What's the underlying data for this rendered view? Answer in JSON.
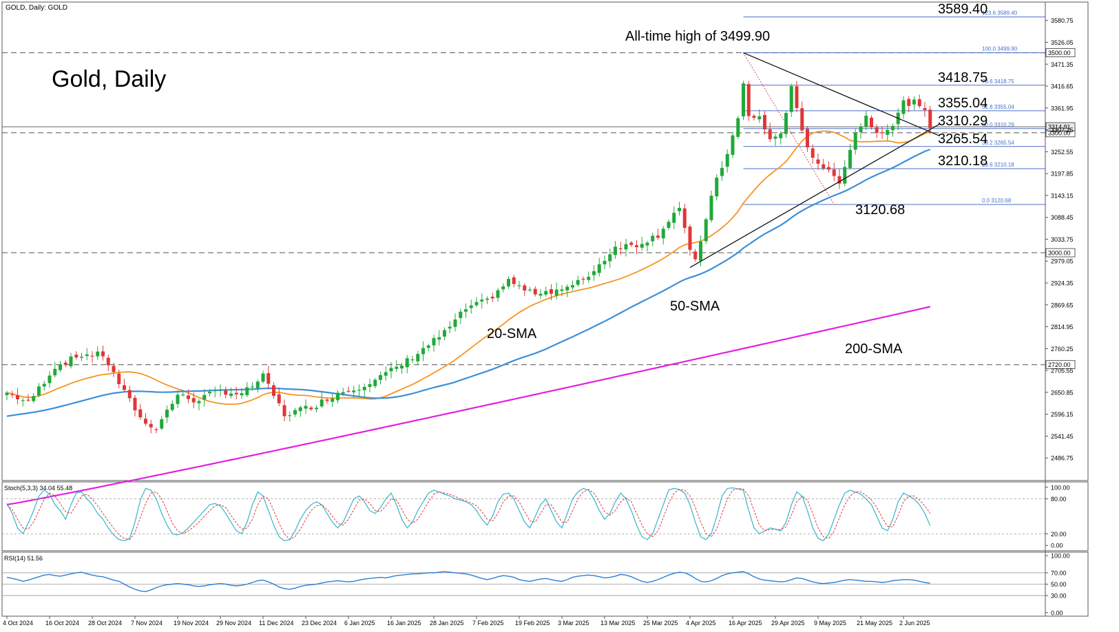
{
  "header": {
    "symbol_label": "GOLD, Daily:  GOLD",
    "chart_title": "Gold, Daily"
  },
  "colors": {
    "bull": "#22a83a",
    "bear": "#e23636",
    "sma20": "#f7941d",
    "sma50": "#3a8fd9",
    "sma200": "#e41ee0",
    "stoch_main": "#35b3c7",
    "stoch_signal": "#e23636",
    "rsi": "#2a7fd4",
    "fib": "#4a6fc7",
    "trend": "#111111"
  },
  "chart_data": [
    {
      "id": "price",
      "type": "candlestick",
      "title": "Gold, Daily",
      "ylim": [
        2432,
        3625
      ],
      "y_ticks": [
        2486.75,
        2541.45,
        2596.15,
        2650.85,
        2705.55,
        2760.25,
        2814.95,
        2869.65,
        2924.35,
        2979.05,
        3033.75,
        3088.45,
        3143.15,
        3197.85,
        3252.55,
        3307.25,
        3361.95,
        3416.65,
        3471.35,
        3526.05,
        3580.75
      ],
      "y_tick_labels": [
        "2486.75",
        "2541.45",
        "2596.15",
        "2650.85",
        "2705.55",
        "2760.25",
        "2814.95",
        "2869.65",
        "2924.35",
        "2979.05",
        "3033.75",
        "3088.45",
        "3143.15",
        "3197.85",
        "3252.55",
        "3307.25",
        "3361.95",
        "3416.65",
        "3471.35",
        "3526.05",
        "3580.75"
      ],
      "x_labels": [
        "4 Oct 2024",
        "16 Oct 2024",
        "28 Oct 2024",
        "7 Nov 2024",
        "19 Nov 2024",
        "29 Nov 2024",
        "11 Dec 2024",
        "23 Dec 2024",
        "6 Jan 2025",
        "16 Jan 2025",
        "28 Jan 2025",
        "7 Feb 2025",
        "19 Feb 2025",
        "3 Mar 2025",
        "13 Mar 2025",
        "25 Mar 2025",
        "4 Apr 2025",
        "16 Apr 2025",
        "29 Apr 2025",
        "9 May 2025",
        "21 May 2025",
        "2 Jun 2025"
      ],
      "x_label_index": [
        0,
        8,
        16,
        24,
        32,
        40,
        48,
        56,
        64,
        72,
        80,
        88,
        96,
        104,
        112,
        120,
        128,
        136,
        144,
        152,
        160,
        168
      ],
      "n_candles": 174,
      "close_anchors": [
        [
          0,
          2650
        ],
        [
          4,
          2625
        ],
        [
          9,
          2715
        ],
        [
          14,
          2745
        ],
        [
          18,
          2745
        ],
        [
          22,
          2650
        ],
        [
          26,
          2570
        ],
        [
          28,
          2565
        ],
        [
          32,
          2645
        ],
        [
          35,
          2630
        ],
        [
          40,
          2655
        ],
        [
          44,
          2645
        ],
        [
          48,
          2690
        ],
        [
          52,
          2595
        ],
        [
          58,
          2620
        ],
        [
          62,
          2650
        ],
        [
          66,
          2665
        ],
        [
          70,
          2690
        ],
        [
          74,
          2720
        ],
        [
          78,
          2760
        ],
        [
          82,
          2800
        ],
        [
          86,
          2860
        ],
        [
          90,
          2880
        ],
        [
          94,
          2930
        ],
        [
          98,
          2900
        ],
        [
          102,
          2905
        ],
        [
          106,
          2915
        ],
        [
          110,
          2955
        ],
        [
          114,
          3015
        ],
        [
          118,
          3020
        ],
        [
          122,
          3045
        ],
        [
          125,
          3100
        ],
        [
          126,
          3110
        ],
        [
          128,
          3000
        ],
        [
          129,
          2985
        ],
        [
          131,
          3080
        ],
        [
          133,
          3190
        ],
        [
          135,
          3245
        ],
        [
          137,
          3335
        ],
        [
          138,
          3420
        ],
        [
          139,
          3340
        ],
        [
          141,
          3340
        ],
        [
          143,
          3280
        ],
        [
          145,
          3300
        ],
        [
          147,
          3410
        ],
        [
          149,
          3300
        ],
        [
          151,
          3240
        ],
        [
          154,
          3200
        ],
        [
          156,
          3180
        ],
        [
          159,
          3300
        ],
        [
          161,
          3340
        ],
        [
          163,
          3300
        ],
        [
          166,
          3320
        ],
        [
          168,
          3375
        ],
        [
          170,
          3375
        ],
        [
          172,
          3350
        ],
        [
          173,
          3315
        ]
      ],
      "price_lines": [
        {
          "name": "3500",
          "value": 3500.0,
          "label": "3500.00",
          "dashed": true
        },
        {
          "name": "3300",
          "value": 3300.0,
          "label": "3300.00",
          "dashed": true
        },
        {
          "name": "3000",
          "value": 3000.0,
          "label": "3000.00",
          "dashed": true
        },
        {
          "name": "2720",
          "value": 2720.0,
          "label": "2720.00",
          "dashed": true
        },
        {
          "name": "last",
          "value": 3314.91,
          "label": "3314.91",
          "dashed": false
        }
      ],
      "fib_levels": [
        {
          "ratio": "123.6",
          "value": 3589.4,
          "big_label": "3589.40"
        },
        {
          "ratio": "100.0",
          "value": 3499.9,
          "big_label": ""
        },
        {
          "ratio": "78.6",
          "value": 3418.75,
          "big_label": "3418.75"
        },
        {
          "ratio": "61.8",
          "value": 3355.04,
          "big_label": "3355.04"
        },
        {
          "ratio": "50.0",
          "value": 3310.29,
          "big_label": "3310.29"
        },
        {
          "ratio": "38.2",
          "value": 3265.54,
          "big_label": "3265.54"
        },
        {
          "ratio": "23.6",
          "value": 3210.18,
          "big_label": "3210.18"
        },
        {
          "ratio": "0.0",
          "value": 3120.68,
          "big_label": ""
        }
      ],
      "annotations": {
        "ath": "All-time high of 3499.90",
        "low": "3120.68",
        "sma20": "20-SMA",
        "sma50": "50-SMA",
        "sma200": "200-SMA"
      },
      "sma200_range": [
        2370,
        2865
      ],
      "trendlines": [
        {
          "name": "upper",
          "from": [
            138,
            3499.9
          ],
          "to": [
            173,
            3292
          ]
        },
        {
          "name": "lower",
          "from": [
            128,
            2963
          ],
          "to": [
            173,
            3322
          ]
        }
      ],
      "grid": false,
      "legend": "none"
    },
    {
      "id": "stochastic",
      "type": "line",
      "title": "Stoch(5,3,3) 34.04 55.48",
      "ylim": [
        -8,
        108
      ],
      "y_ticks": [
        0,
        20,
        80,
        100
      ],
      "y_tick_labels": [
        "0.00",
        "20.00",
        "80.00",
        "100.00"
      ],
      "levels": [
        20,
        80
      ],
      "series": [
        {
          "name": "%K",
          "values": [
            72,
            55,
            30,
            20,
            38,
            60,
            85,
            95,
            88,
            70,
            60,
            45,
            70,
            90,
            92,
            80,
            70,
            55,
            45,
            30,
            18,
            10,
            8,
            12,
            40,
            78,
            98,
            95,
            80,
            55,
            35,
            20,
            18,
            22,
            30,
            40,
            50,
            60,
            70,
            72,
            68,
            55,
            40,
            25,
            20,
            40,
            70,
            92,
            85,
            60,
            35,
            15,
            8,
            10,
            25,
            45,
            60,
            70,
            75,
            70,
            55,
            40,
            30,
            40,
            60,
            80,
            85,
            75,
            60,
            55,
            65,
            80,
            90,
            70,
            45,
            30,
            40,
            60,
            75,
            90,
            95,
            92,
            88,
            85,
            80,
            78,
            75,
            70,
            60,
            45,
            35,
            50,
            75,
            88,
            90,
            80,
            60,
            40,
            30,
            50,
            70,
            80,
            60,
            40,
            30,
            55,
            80,
            92,
            98,
            95,
            80,
            60,
            45,
            55,
            75,
            90,
            80,
            60,
            35,
            15,
            10,
            20,
            45,
            70,
            95,
            98,
            96,
            90,
            70,
            40,
            15,
            10,
            20,
            50,
            85,
            98,
            99,
            97,
            95,
            60,
            30,
            20,
            25,
            30,
            28,
            25,
            40,
            70,
            92,
            85,
            60,
            30,
            12,
            8,
            20,
            45,
            70,
            90,
            95,
            92,
            88,
            80,
            70,
            50,
            30,
            25,
            45,
            75,
            90,
            85,
            80,
            70,
            55,
            34
          ]
        },
        {
          "name": "%D",
          "values": [
            70,
            62,
            45,
            30,
            28,
            40,
            60,
            80,
            90,
            85,
            72,
            58,
            55,
            70,
            85,
            88,
            80,
            68,
            55,
            42,
            30,
            18,
            12,
            10,
            22,
            48,
            72,
            90,
            92,
            80,
            60,
            38,
            25,
            20,
            25,
            32,
            40,
            50,
            60,
            68,
            70,
            65,
            52,
            38,
            28,
            30,
            45,
            70,
            85,
            80,
            60,
            38,
            20,
            10,
            15,
            28,
            45,
            60,
            68,
            70,
            62,
            50,
            38,
            35,
            45,
            62,
            78,
            80,
            72,
            60,
            58,
            68,
            80,
            78,
            62,
            45,
            38,
            45,
            60,
            75,
            88,
            92,
            90,
            88,
            84,
            80,
            77,
            73,
            68,
            58,
            45,
            42,
            55,
            75,
            85,
            85,
            75,
            58,
            42,
            40,
            55,
            70,
            70,
            55,
            40,
            40,
            60,
            80,
            92,
            96,
            90,
            75,
            58,
            52,
            60,
            75,
            82,
            75,
            55,
            35,
            20,
            15,
            25,
            48,
            72,
            90,
            96,
            95,
            85,
            65,
            40,
            20,
            15,
            28,
            55,
            80,
            95,
            98,
            97,
            85,
            60,
            35,
            25,
            27,
            28,
            27,
            32,
            52,
            75,
            85,
            78,
            55,
            30,
            15,
            12,
            25,
            48,
            70,
            85,
            92,
            92,
            86,
            78,
            65,
            48,
            33,
            32,
            52,
            75,
            85,
            85,
            78,
            68,
            55
          ]
        }
      ],
      "grid": false,
      "legend": "none"
    },
    {
      "id": "rsi",
      "type": "line",
      "title": "RSI(14) 51.56",
      "ylim": [
        -5,
        105
      ],
      "y_ticks": [
        0,
        30,
        50,
        70,
        100
      ],
      "y_tick_labels": [
        "0.00",
        "30.00",
        "50.00",
        "70.00",
        "100.00"
      ],
      "levels": [
        30,
        50,
        70
      ],
      "series": [
        {
          "name": "RSI",
          "values": [
            62,
            60,
            58,
            55,
            57,
            60,
            63,
            66,
            67,
            65,
            64,
            66,
            68,
            70,
            71,
            68,
            66,
            64,
            63,
            60,
            57,
            55,
            50,
            45,
            41,
            38,
            37,
            40,
            44,
            47,
            49,
            50,
            51,
            50,
            49,
            47,
            46,
            47,
            49,
            50,
            51,
            50,
            48,
            47,
            48,
            50,
            53,
            56,
            57,
            54,
            50,
            45,
            42,
            41,
            43,
            46,
            48,
            49,
            50,
            52,
            54,
            55,
            56,
            55,
            54,
            55,
            57,
            59,
            60,
            61,
            62,
            61,
            63,
            65,
            66,
            67,
            68,
            68,
            69,
            70,
            70,
            71,
            72,
            71,
            70,
            69,
            68,
            66,
            63,
            60,
            58,
            60,
            63,
            65,
            64,
            62,
            58,
            56,
            55,
            57,
            59,
            60,
            58,
            56,
            55,
            58,
            62,
            64,
            65,
            66,
            65,
            63,
            61,
            62,
            64,
            67,
            66,
            63,
            59,
            55,
            53,
            55,
            58,
            62,
            66,
            69,
            71,
            70,
            66,
            60,
            55,
            54,
            56,
            60,
            65,
            68,
            70,
            71,
            72,
            68,
            63,
            59,
            57,
            56,
            55,
            54,
            55,
            58,
            61,
            60,
            57,
            54,
            52,
            51,
            52,
            53,
            55,
            57,
            58,
            57,
            56,
            55,
            55,
            54,
            53,
            54,
            56,
            57,
            58,
            58,
            57,
            55,
            53,
            51.56
          ]
        }
      ],
      "grid": false,
      "legend": "none"
    }
  ]
}
